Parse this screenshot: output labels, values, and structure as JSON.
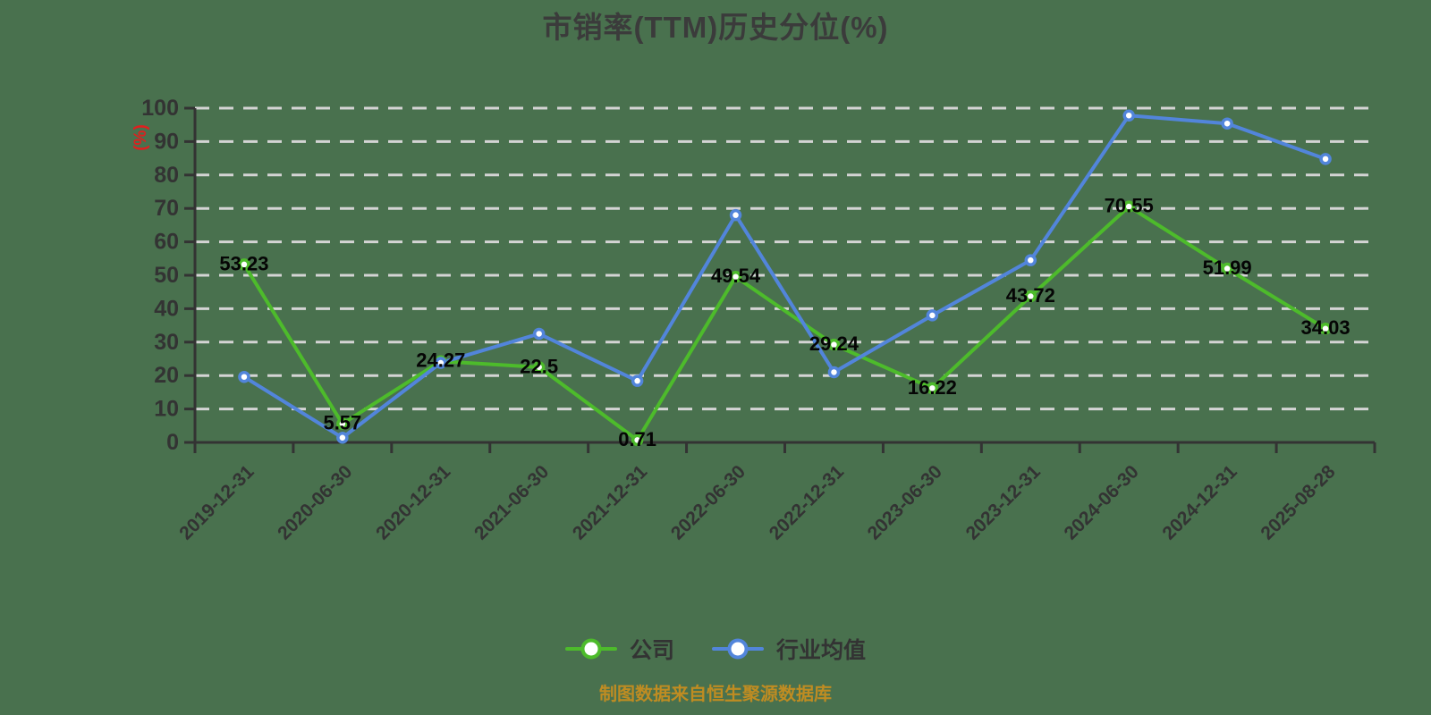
{
  "title": "市销率(TTM)历史分位(%)",
  "chart_data": {
    "type": "line",
    "title": "市销率(TTM)历史分位(%)",
    "xlabel": "",
    "ylabel": "(%)",
    "ylim": [
      0,
      100
    ],
    "ytick_step": 10,
    "ytick_labels": [
      "0",
      "10",
      "20",
      "30",
      "40",
      "50",
      "60",
      "70",
      "80",
      "90",
      "100"
    ],
    "grid": "horizontal-dashed",
    "legend_position": "bottom",
    "categories": [
      "2019-12-31",
      "2020-06-30",
      "2020-12-31",
      "2021-06-30",
      "2021-12-31",
      "2022-06-30",
      "2022-12-31",
      "2023-06-30",
      "2023-12-31",
      "2024-06-30",
      "2024-12-31",
      "2025-08-28"
    ],
    "series": [
      {
        "name": "公司",
        "color": "#4DBB2B",
        "values": [
          53.23,
          5.57,
          24.27,
          22.5,
          0.71,
          49.54,
          29.24,
          16.22,
          43.72,
          70.55,
          51.99,
          34.03
        ],
        "data_labels": [
          "53.23",
          "5.57",
          "24.27",
          "22.5",
          "0.71",
          "49.54",
          "29.24",
          "16.22",
          "43.72",
          "70.55",
          "51.99",
          "34.03"
        ],
        "data_labels_visible": true
      },
      {
        "name": "行业均值",
        "color": "#5285DB",
        "values": [
          19.6,
          1.4,
          23.8,
          32.5,
          18.4,
          68,
          21,
          38,
          54.5,
          97.8,
          95.4,
          84.8
        ],
        "data_labels": [],
        "data_labels_visible": false
      }
    ]
  },
  "footer": {
    "source_note": "制图数据来自恒生聚源数据库"
  },
  "style": {
    "background": "#49714E",
    "axis_color": "#333333",
    "gridline_color": "#D4D4D4",
    "tick_label_color": "#333333",
    "data_label_color": "#050505",
    "ylabel_color": "#E01F1F",
    "title_color": "#3B3B3B",
    "footer_color": "#BF8C22",
    "marker_fill": "#FFFFFF"
  }
}
